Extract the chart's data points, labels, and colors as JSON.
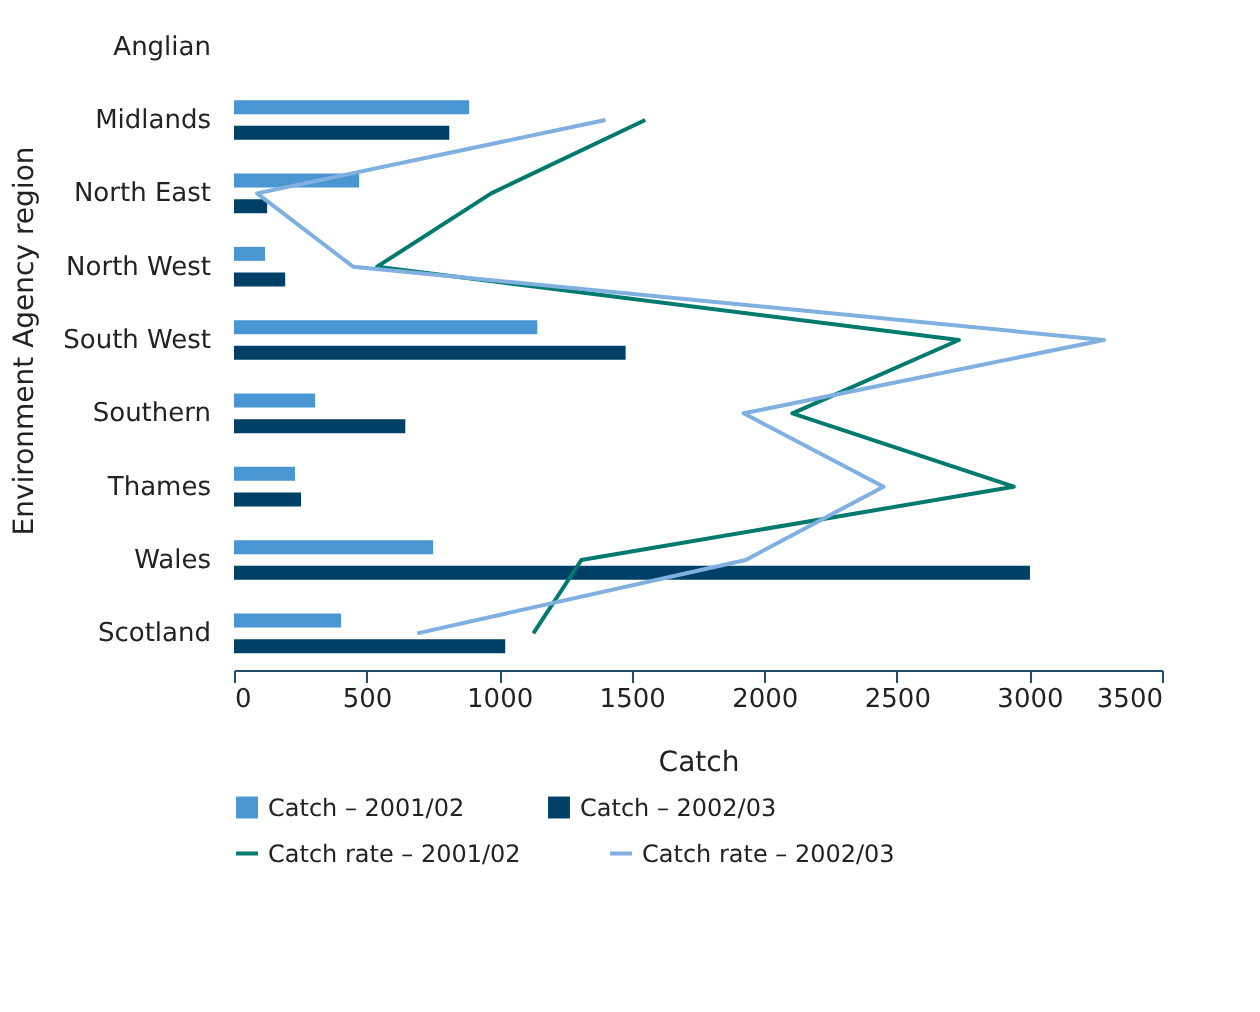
{
  "chart_data": {
    "type": "bar",
    "orientation": "horizontal",
    "xlabel": "Catch",
    "ylabel": "Environment Agency region",
    "categories": [
      "Anglian",
      "Midlands",
      "North East",
      "North West",
      "South West",
      "Southern",
      "Thames",
      "Wales",
      "Scotland"
    ],
    "series": [
      {
        "name": "Catch – 2001/02",
        "color": "#4a96d2",
        "values": [
          null,
          887,
          472,
          117,
          1144,
          306,
          230,
          751,
          404
        ]
      },
      {
        "name": "Catch – 2002/03",
        "color": "#003f66",
        "values": [
          null,
          812,
          125,
          193,
          1477,
          646,
          253,
          3002,
          1023
        ]
      },
      {
        "name": "Catch rate – 2001/02",
        "type": "line",
        "color": "#007a6e",
        "values": [
          null,
          1551,
          970,
          540,
          2734,
          2106,
          2941,
          1310,
          1129
        ]
      },
      {
        "name": "Catch rate – 2002/03",
        "type": "line",
        "color": "#7fb0e0",
        "values": [
          null,
          1401,
          87,
          449,
          3281,
          1922,
          2450,
          1930,
          691
        ]
      }
    ],
    "xlim": [
      0,
      3500
    ],
    "xticks": [
      0,
      500,
      1000,
      1500,
      2000,
      2500,
      3000,
      3500
    ],
    "grid": false,
    "legend": "bottom"
  }
}
